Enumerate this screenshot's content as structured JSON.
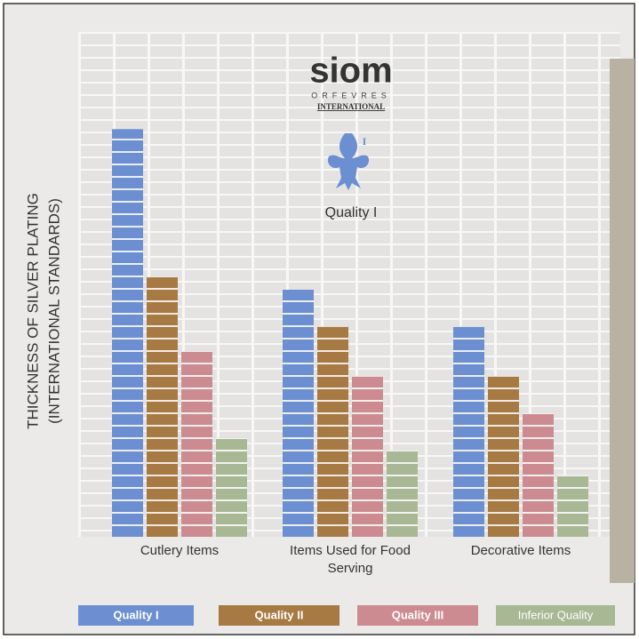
{
  "chart_data": {
    "type": "bar",
    "y_label": [
      "THICKNESS OF SILVER PLATING",
      "(INTERNATIONAL STANDARDS)"
    ],
    "logo": {
      "brand": "siom",
      "line1": "ORFEVRES",
      "line2": "INTERNATIONAL",
      "mark": "I",
      "caption": "Quality I"
    },
    "categories": [
      "Cutlery Items",
      "Items Used for Food Serving",
      "Decorative Items"
    ],
    "series": [
      {
        "name": "Quality I",
        "color": "#6b8fd1",
        "values": [
          33,
          20,
          17
        ]
      },
      {
        "name": "Quality II",
        "color": "#a77943",
        "values": [
          21,
          17,
          13
        ]
      },
      {
        "name": "Quality III",
        "color": "#cc8b90",
        "values": [
          15,
          13,
          10
        ]
      },
      {
        "name": "Inferior Quality",
        "color": "#a8b894",
        "values": [
          8,
          7,
          5
        ]
      }
    ],
    "grid": true
  }
}
